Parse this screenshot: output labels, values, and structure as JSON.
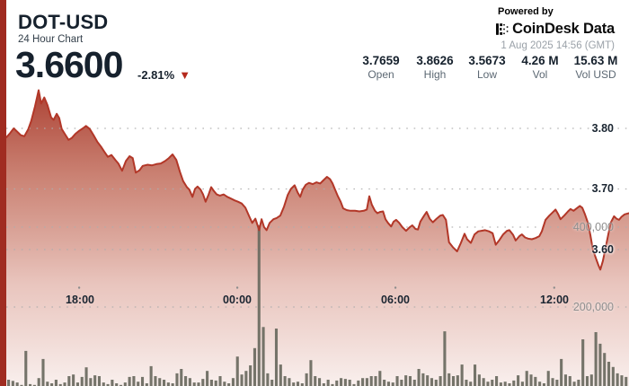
{
  "header": {
    "symbol": "DOT-USD",
    "subtitle": "24 Hour Chart",
    "price": "3.6600",
    "change_percent": "-2.81%",
    "change_direction": "down",
    "stats": [
      {
        "value": "3.7659",
        "label": "Open"
      },
      {
        "value": "3.8626",
        "label": "High"
      },
      {
        "value": "3.5673",
        "label": "Low"
      },
      {
        "value": "4.26 M",
        "label": "Vol"
      },
      {
        "value": "15.63 M",
        "label": "Vol USD"
      }
    ],
    "powered_by": "Powered by",
    "brand": "CoinDesk Data",
    "timestamp": "1 Aug 2025 14:56 (GMT)"
  },
  "icons": {
    "down_triangle": "▼"
  },
  "colors": {
    "accent_bar": "#a02c21",
    "line_red": "#b23728",
    "triangle_red": "#b5291c",
    "text_dark": "#16212d",
    "text_gray": "#5c6873",
    "volume_bar": "#6b6b60",
    "grid_dot": "#adadad"
  },
  "chart_data": {
    "type": "area",
    "title": "DOT-USD 24 Hour Chart",
    "legend": [],
    "grid": "dotted-horizontal",
    "x_axis": {
      "ticks": [
        "18:00",
        "00:00",
        "06:00",
        "12:00"
      ],
      "tick_pos": [
        0.117,
        0.371,
        0.625,
        0.88
      ]
    },
    "y_axis_price": {
      "ticks": [
        "3.80",
        "3.70",
        "3.60"
      ],
      "tick_values": [
        3.8,
        3.7,
        3.6
      ],
      "range_top": 3.871,
      "range_bottom": 3.375
    },
    "y_axis_volume": {
      "ticks": [
        "400,000",
        "200,000"
      ],
      "tick_values": [
        400000,
        200000
      ],
      "max": 420000
    },
    "price_series": [
      [
        0.0,
        3.785
      ],
      [
        0.006,
        3.792
      ],
      [
        0.012,
        3.8
      ],
      [
        0.017,
        3.795
      ],
      [
        0.023,
        3.789
      ],
      [
        0.029,
        3.787
      ],
      [
        0.035,
        3.798
      ],
      [
        0.04,
        3.812
      ],
      [
        0.046,
        3.836
      ],
      [
        0.052,
        3.863
      ],
      [
        0.056,
        3.841
      ],
      [
        0.061,
        3.851
      ],
      [
        0.066,
        3.839
      ],
      [
        0.072,
        3.818
      ],
      [
        0.076,
        3.814
      ],
      [
        0.081,
        3.824
      ],
      [
        0.085,
        3.817
      ],
      [
        0.089,
        3.799
      ],
      [
        0.094,
        3.791
      ],
      [
        0.1,
        3.781
      ],
      [
        0.105,
        3.784
      ],
      [
        0.111,
        3.791
      ],
      [
        0.117,
        3.796
      ],
      [
        0.123,
        3.8
      ],
      [
        0.128,
        3.804
      ],
      [
        0.134,
        3.799
      ],
      [
        0.14,
        3.789
      ],
      [
        0.146,
        3.778
      ],
      [
        0.152,
        3.77
      ],
      [
        0.157,
        3.762
      ],
      [
        0.163,
        3.753
      ],
      [
        0.169,
        3.756
      ],
      [
        0.175,
        3.748
      ],
      [
        0.18,
        3.742
      ],
      [
        0.186,
        3.73
      ],
      [
        0.192,
        3.746
      ],
      [
        0.198,
        3.754
      ],
      [
        0.203,
        3.751
      ],
      [
        0.208,
        3.727
      ],
      [
        0.214,
        3.731
      ],
      [
        0.219,
        3.738
      ],
      [
        0.227,
        3.74
      ],
      [
        0.234,
        3.739
      ],
      [
        0.241,
        3.741
      ],
      [
        0.248,
        3.742
      ],
      [
        0.255,
        3.746
      ],
      [
        0.261,
        3.751
      ],
      [
        0.267,
        3.757
      ],
      [
        0.273,
        3.748
      ],
      [
        0.279,
        3.728
      ],
      [
        0.284,
        3.713
      ],
      [
        0.29,
        3.703
      ],
      [
        0.294,
        3.699
      ],
      [
        0.299,
        3.687
      ],
      [
        0.303,
        3.7
      ],
      [
        0.307,
        3.704
      ],
      [
        0.312,
        3.699
      ],
      [
        0.316,
        3.691
      ],
      [
        0.32,
        3.679
      ],
      [
        0.325,
        3.691
      ],
      [
        0.329,
        3.703
      ],
      [
        0.333,
        3.697
      ],
      [
        0.338,
        3.691
      ],
      [
        0.343,
        3.689
      ],
      [
        0.349,
        3.691
      ],
      [
        0.355,
        3.687
      ],
      [
        0.361,
        3.684
      ],
      [
        0.367,
        3.681
      ],
      [
        0.372,
        3.679
      ],
      [
        0.378,
        3.676
      ],
      [
        0.384,
        3.669
      ],
      [
        0.39,
        3.655
      ],
      [
        0.395,
        3.644
      ],
      [
        0.4,
        3.651
      ],
      [
        0.406,
        3.632
      ],
      [
        0.41,
        3.65
      ],
      [
        0.414,
        3.637
      ],
      [
        0.418,
        3.632
      ],
      [
        0.423,
        3.644
      ],
      [
        0.429,
        3.65
      ],
      [
        0.434,
        3.652
      ],
      [
        0.44,
        3.656
      ],
      [
        0.446,
        3.671
      ],
      [
        0.452,
        3.69
      ],
      [
        0.457,
        3.7
      ],
      [
        0.463,
        3.706
      ],
      [
        0.468,
        3.694
      ],
      [
        0.472,
        3.687
      ],
      [
        0.476,
        3.699
      ],
      [
        0.481,
        3.707
      ],
      [
        0.486,
        3.71
      ],
      [
        0.492,
        3.708
      ],
      [
        0.498,
        3.711
      ],
      [
        0.504,
        3.709
      ],
      [
        0.509,
        3.714
      ],
      [
        0.515,
        3.72
      ],
      [
        0.52,
        3.716
      ],
      [
        0.524,
        3.709
      ],
      [
        0.528,
        3.699
      ],
      [
        0.532,
        3.689
      ],
      [
        0.537,
        3.679
      ],
      [
        0.541,
        3.668
      ],
      [
        0.547,
        3.665
      ],
      [
        0.553,
        3.664
      ],
      [
        0.56,
        3.664
      ],
      [
        0.567,
        3.663
      ],
      [
        0.574,
        3.664
      ],
      [
        0.579,
        3.666
      ],
      [
        0.583,
        3.688
      ],
      [
        0.587,
        3.674
      ],
      [
        0.592,
        3.664
      ],
      [
        0.596,
        3.66
      ],
      [
        0.6,
        3.662
      ],
      [
        0.605,
        3.663
      ],
      [
        0.609,
        3.65
      ],
      [
        0.613,
        3.644
      ],
      [
        0.618,
        3.638
      ],
      [
        0.622,
        3.646
      ],
      [
        0.626,
        3.649
      ],
      [
        0.631,
        3.644
      ],
      [
        0.636,
        3.637
      ],
      [
        0.642,
        3.631
      ],
      [
        0.648,
        3.637
      ],
      [
        0.652,
        3.64
      ],
      [
        0.657,
        3.634
      ],
      [
        0.661,
        3.633
      ],
      [
        0.665,
        3.646
      ],
      [
        0.671,
        3.656
      ],
      [
        0.675,
        3.662
      ],
      [
        0.68,
        3.651
      ],
      [
        0.685,
        3.645
      ],
      [
        0.691,
        3.651
      ],
      [
        0.697,
        3.656
      ],
      [
        0.701,
        3.657
      ],
      [
        0.706,
        3.649
      ],
      [
        0.711,
        3.612
      ],
      [
        0.717,
        3.604
      ],
      [
        0.724,
        3.597
      ],
      [
        0.73,
        3.611
      ],
      [
        0.736,
        3.626
      ],
      [
        0.74,
        3.617
      ],
      [
        0.746,
        3.611
      ],
      [
        0.752,
        3.625
      ],
      [
        0.758,
        3.63
      ],
      [
        0.763,
        3.631
      ],
      [
        0.769,
        3.632
      ],
      [
        0.775,
        3.63
      ],
      [
        0.781,
        3.627
      ],
      [
        0.786,
        3.608
      ],
      [
        0.792,
        3.616
      ],
      [
        0.798,
        3.625
      ],
      [
        0.804,
        3.631
      ],
      [
        0.808,
        3.632
      ],
      [
        0.814,
        3.624
      ],
      [
        0.818,
        3.615
      ],
      [
        0.824,
        3.622
      ],
      [
        0.828,
        3.625
      ],
      [
        0.833,
        3.62
      ],
      [
        0.838,
        3.618
      ],
      [
        0.844,
        3.617
      ],
      [
        0.85,
        3.619
      ],
      [
        0.856,
        3.622
      ],
      [
        0.86,
        3.63
      ],
      [
        0.866,
        3.649
      ],
      [
        0.872,
        3.656
      ],
      [
        0.877,
        3.661
      ],
      [
        0.882,
        3.666
      ],
      [
        0.886,
        3.659
      ],
      [
        0.89,
        3.65
      ],
      [
        0.896,
        3.656
      ],
      [
        0.902,
        3.663
      ],
      [
        0.906,
        3.667
      ],
      [
        0.911,
        3.664
      ],
      [
        0.916,
        3.668
      ],
      [
        0.921,
        3.672
      ],
      [
        0.925,
        3.669
      ],
      [
        0.929,
        3.659
      ],
      [
        0.934,
        3.644
      ],
      [
        0.938,
        3.624
      ],
      [
        0.942,
        3.6
      ],
      [
        0.947,
        3.585
      ],
      [
        0.951,
        3.574
      ],
      [
        0.954,
        3.567
      ],
      [
        0.958,
        3.581
      ],
      [
        0.962,
        3.601
      ],
      [
        0.967,
        3.626
      ],
      [
        0.971,
        3.645
      ],
      [
        0.976,
        3.655
      ],
      [
        0.98,
        3.651
      ],
      [
        0.984,
        3.649
      ],
      [
        0.988,
        3.654
      ],
      [
        0.993,
        3.658
      ],
      [
        1.0,
        3.66
      ]
    ],
    "volume_series": [
      18000,
      15000,
      11000,
      5000,
      90000,
      7000,
      5000,
      22000,
      70000,
      13000,
      9000,
      18000,
      7000,
      11000,
      27000,
      31000,
      11000,
      25000,
      49000,
      22000,
      29000,
      27000,
      11000,
      7000,
      18000,
      9000,
      5000,
      11000,
      25000,
      27000,
      13000,
      25000,
      9000,
      52000,
      27000,
      22000,
      18000,
      11000,
      9000,
      34000,
      45000,
      27000,
      22000,
      11000,
      11000,
      20000,
      40000,
      18000,
      16000,
      27000,
      13000,
      9000,
      22000,
      76000,
      31000,
      40000,
      54000,
      97000,
      405000,
      150000,
      34000,
      18000,
      146000,
      56000,
      27000,
      22000,
      11000,
      13000,
      9000,
      34000,
      67000,
      27000,
      22000,
      9000,
      18000,
      7000,
      16000,
      22000,
      20000,
      18000,
      7000,
      16000,
      22000,
      22000,
      27000,
      27000,
      40000,
      18000,
      13000,
      11000,
      27000,
      18000,
      29000,
      27000,
      18000,
      45000,
      34000,
      29000,
      22000,
      18000,
      27000,
      139000,
      34000,
      27000,
      29000,
      56000,
      18000,
      13000,
      56000,
      31000,
      22000,
      13000,
      18000,
      27000,
      11000,
      13000,
      9000,
      16000,
      29000,
      13000,
      40000,
      31000,
      25000,
      13000,
      9000,
      40000,
      22000,
      18000,
      70000,
      31000,
      27000,
      13000,
      18000,
      119000,
      27000,
      31000,
      137000,
      108000,
      85000,
      63000,
      50000,
      34000,
      29000,
      25000
    ]
  }
}
